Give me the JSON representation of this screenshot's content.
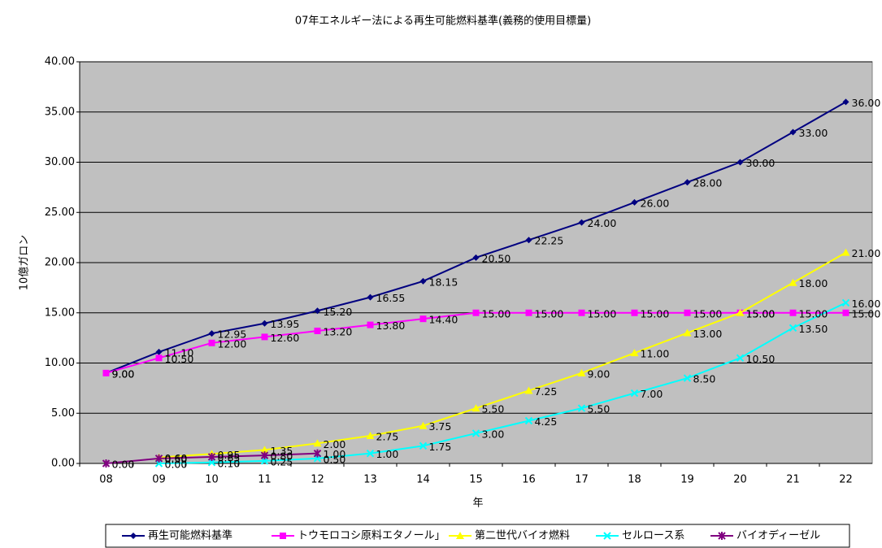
{
  "chart_data": {
    "type": "line",
    "title": "07年エネルギー法による再生可能燃料基準(義務的使用目標量)",
    "y_label": "10億ガロン",
    "x_label": "年",
    "categories": [
      "08",
      "09",
      "10",
      "11",
      "12",
      "13",
      "14",
      "15",
      "16",
      "17",
      "18",
      "19",
      "20",
      "21",
      "22"
    ],
    "ylim": [
      0,
      40
    ],
    "yticks": [
      {
        "value": 0,
        "label": "0.00"
      },
      {
        "value": 5,
        "label": "5.00"
      },
      {
        "value": 10,
        "label": "10.00"
      },
      {
        "value": 15,
        "label": "15.00"
      },
      {
        "value": 20,
        "label": "20.00"
      },
      {
        "value": 25,
        "label": "25.00"
      },
      {
        "value": 30,
        "label": "30.00"
      },
      {
        "value": 35,
        "label": "35.00"
      },
      {
        "value": 40,
        "label": "40.00"
      }
    ],
    "grid": true,
    "legend": "bottom",
    "background": "#c0c0c0",
    "series": [
      {
        "name": "再生可能燃料基準",
        "color": "#000080",
        "marker": "diamond",
        "values": [
          9,
          11.1,
          12.95,
          13.95,
          15.2,
          16.55,
          18.15,
          20.5,
          22.25,
          24,
          26,
          28,
          30,
          33,
          36
        ],
        "value_labels": [
          "9.00",
          "11.10",
          "12.95",
          "13.95",
          "15.20",
          "16.55",
          "18.15",
          "20.50",
          "22.25",
          "24.00",
          "26.00",
          "28.00",
          "30.00",
          "33.00",
          "36.00"
        ]
      },
      {
        "name": "トウモロコシ原料エタノール」",
        "color": "#ff00ff",
        "marker": "square",
        "values": [
          9,
          10.5,
          12,
          12.6,
          13.2,
          13.8,
          14.4,
          15,
          15,
          15,
          15,
          15,
          15,
          15,
          15
        ],
        "value_labels": [
          "9.00",
          "10.50",
          "12.00",
          "12.60",
          "13.20",
          "13.80",
          "14.40",
          "15.00",
          "15.00",
          "15.00",
          "15.00",
          "15.00",
          "15.00",
          "15.00",
          "15.00"
        ]
      },
      {
        "name": "第二世代バイオ燃料",
        "color": "#ffff00",
        "marker": "triangle",
        "values": [
          null,
          0.6,
          0.95,
          1.35,
          2,
          2.75,
          3.75,
          5.5,
          7.25,
          9,
          11,
          13,
          15,
          18,
          21
        ],
        "value_labels": [
          null,
          "0.60",
          "0.95",
          "1.35",
          "2.00",
          "2.75",
          "3.75",
          "5.50",
          "7.25",
          "9.00",
          "11.00",
          "13.00",
          "15.00",
          "18.00",
          "21.00"
        ]
      },
      {
        "name": "セルロース系",
        "color": "#00ffff",
        "marker": "x",
        "values": [
          null,
          0,
          0.1,
          0.25,
          0.5,
          1,
          1.75,
          3,
          4.25,
          5.5,
          7,
          8.5,
          10.5,
          13.5,
          16
        ],
        "value_labels": [
          null,
          "0.00",
          "0.10",
          "0.25",
          "0.50",
          "1.00",
          "1.75",
          "3.00",
          "4.25",
          "5.50",
          "7.00",
          "8.50",
          "10.50",
          "13.50",
          "16.00"
        ]
      },
      {
        "name": "バイオディーゼル",
        "color": "#800080",
        "marker": "star",
        "values": [
          0,
          0.5,
          0.65,
          0.8,
          1,
          null,
          null,
          null,
          null,
          null,
          null,
          null,
          null,
          null,
          null
        ],
        "value_labels": [
          "0.00",
          "0.50",
          "0.65",
          "0.80",
          "1.00",
          null,
          null,
          null,
          null,
          null,
          null,
          null,
          null,
          null,
          null
        ]
      }
    ]
  }
}
